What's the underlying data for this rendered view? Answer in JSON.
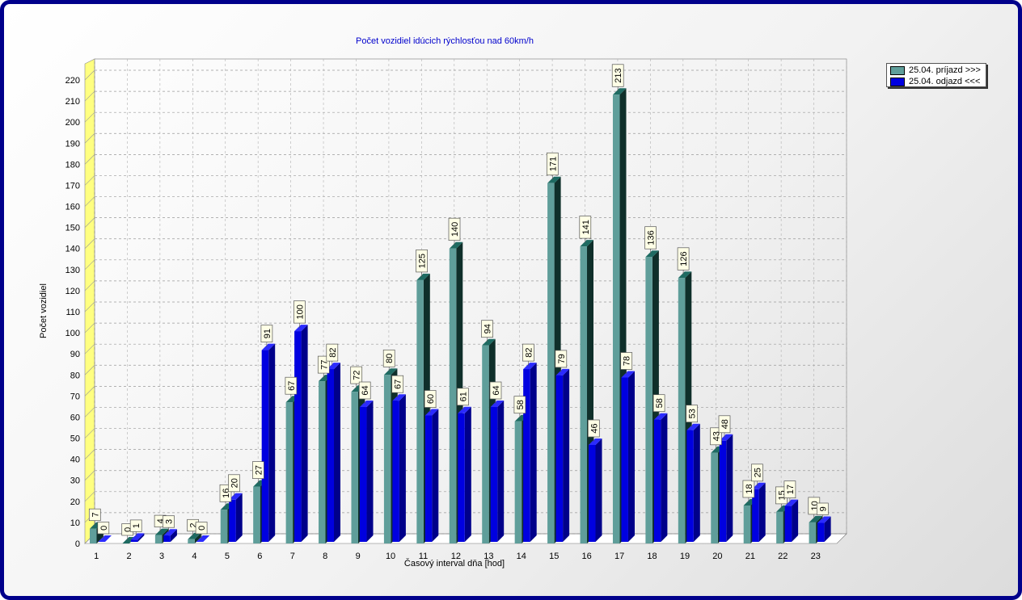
{
  "colors": {
    "frame": "#00008b",
    "series1_front": "#5f9e9a",
    "series1_top": "#1e6b62",
    "series1_side": "#0f2f2a",
    "series2_front": "#0000e0",
    "series2_top": "#2b2bff",
    "series2_side": "#00008a",
    "wall": "#ffff80",
    "label_bg": "#ffffe6"
  },
  "chart_data": {
    "type": "bar",
    "title": "Počet vozidiel idúcich rýchlosťou nad 60km/h",
    "xlabel": "Časový interval dňa [hod]",
    "ylabel": "Počet vozidiel",
    "ylim": [
      0,
      220
    ],
    "ytick_step": 10,
    "grid": true,
    "legend_position": "top-right",
    "categories": [
      "1",
      "2",
      "3",
      "4",
      "5",
      "6",
      "7",
      "8",
      "9",
      "10",
      "11",
      "12",
      "13",
      "14",
      "15",
      "16",
      "17",
      "18",
      "19",
      "20",
      "21",
      "22",
      "23"
    ],
    "series": [
      {
        "name": "25.04.  príjazd >>>",
        "values": [
          7,
          0,
          4,
          2,
          16,
          27,
          67,
          77,
          72,
          80,
          125,
          140,
          94,
          58,
          171,
          141,
          213,
          136,
          126,
          43,
          18,
          15,
          10
        ]
      },
      {
        "name": "25.04.  odjazd <<<",
        "values": [
          0,
          1,
          3,
          0,
          20,
          91,
          100,
          82,
          64,
          67,
          60,
          61,
          64,
          82,
          79,
          46,
          78,
          58,
          53,
          48,
          25,
          17,
          9
        ]
      }
    ]
  }
}
